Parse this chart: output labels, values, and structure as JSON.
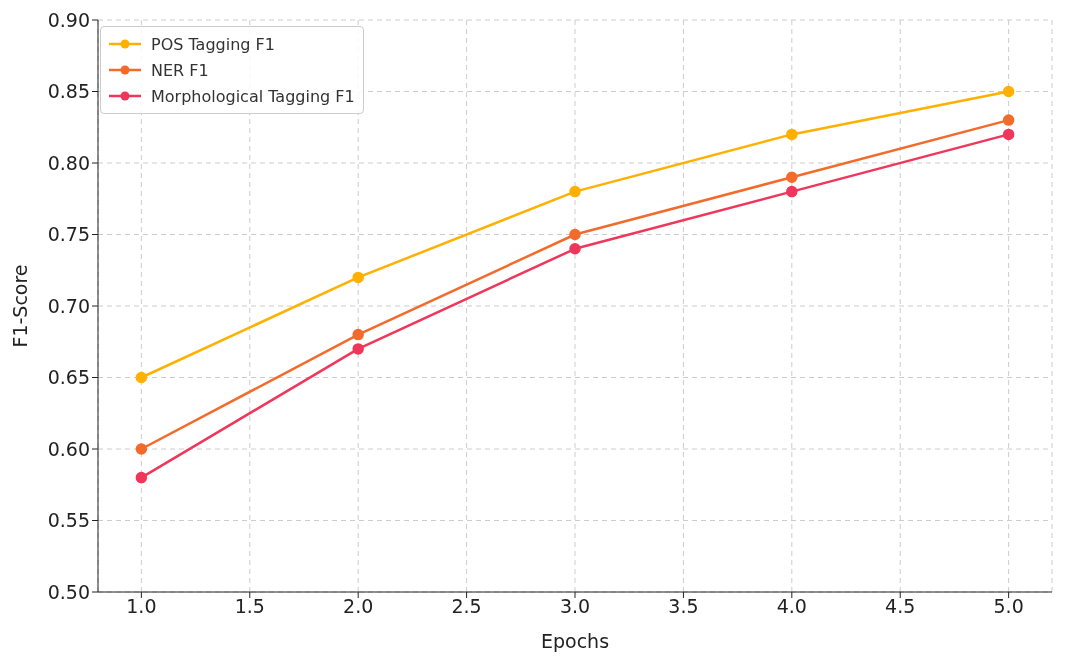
{
  "chart_data": {
    "type": "line",
    "xlabel": "Epochs",
    "ylabel": "F1-Score",
    "x": [
      1,
      2,
      3,
      4,
      5
    ],
    "series": [
      {
        "name": "POS Tagging F1",
        "color": "#ffb000",
        "values": [
          0.65,
          0.72,
          0.78,
          0.82,
          0.85
        ]
      },
      {
        "name": "NER F1",
        "color": "#f26b2b",
        "values": [
          0.6,
          0.68,
          0.75,
          0.79,
          0.83
        ]
      },
      {
        "name": "Morphological Tagging F1",
        "color": "#f0365a",
        "values": [
          0.58,
          0.67,
          0.74,
          0.78,
          0.82
        ]
      }
    ],
    "xlim": [
      0.8,
      5.2
    ],
    "xticks": [
      {
        "value": 1,
        "label": "1.0"
      },
      {
        "value": 1.5,
        "label": "1.5"
      },
      {
        "value": 2,
        "label": "2.0"
      },
      {
        "value": 2.5,
        "label": "2.5"
      },
      {
        "value": 3,
        "label": "3.0"
      },
      {
        "value": 3.5,
        "label": "3.5"
      },
      {
        "value": 4,
        "label": "4.0"
      },
      {
        "value": 4.5,
        "label": "4.5"
      },
      {
        "value": 5,
        "label": "5.0"
      }
    ],
    "ylim": [
      0.5,
      0.9
    ],
    "yticks": [
      {
        "value": 0.5,
        "label": "0.50"
      },
      {
        "value": 0.55,
        "label": "0.55"
      },
      {
        "value": 0.6,
        "label": "0.60"
      },
      {
        "value": 0.65,
        "label": "0.65"
      },
      {
        "value": 0.7,
        "label": "0.70"
      },
      {
        "value": 0.75,
        "label": "0.75"
      },
      {
        "value": 0.8,
        "label": "0.80"
      },
      {
        "value": 0.85,
        "label": "0.85"
      },
      {
        "value": 0.9,
        "label": "0.90"
      }
    ],
    "grid": true,
    "legend": "top left",
    "marker": "circle",
    "line_style": "solid"
  }
}
